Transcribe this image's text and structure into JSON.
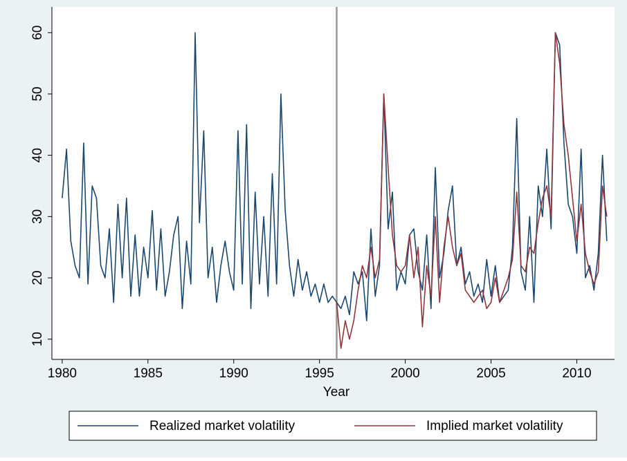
{
  "chart_data": {
    "type": "line",
    "xlabel": "Year",
    "xlim": [
      1979.4,
      2012.2
    ],
    "xticks": [
      1980,
      1985,
      1990,
      1995,
      2000,
      2005,
      2010
    ],
    "ylim": [
      6.7,
      64.2
    ],
    "yticks": [
      10,
      20,
      30,
      40,
      50,
      60
    ],
    "vline": 1996,
    "legend": "bottom",
    "x": [
      1980,
      1980.25,
      1980.5,
      1980.75,
      1981,
      1981.25,
      1981.5,
      1981.75,
      1982,
      1982.25,
      1982.5,
      1982.75,
      1983,
      1983.25,
      1983.5,
      1983.75,
      1984,
      1984.25,
      1984.5,
      1984.75,
      1985,
      1985.25,
      1985.5,
      1985.75,
      1986,
      1986.25,
      1986.5,
      1986.75,
      1987,
      1987.25,
      1987.5,
      1987.75,
      1988,
      1988.25,
      1988.5,
      1988.75,
      1989,
      1989.25,
      1989.5,
      1989.75,
      1990,
      1990.25,
      1990.5,
      1990.75,
      1991,
      1991.25,
      1991.5,
      1991.75,
      1992,
      1992.25,
      1992.5,
      1992.75,
      1993,
      1993.25,
      1993.5,
      1993.75,
      1994,
      1994.25,
      1994.5,
      1994.75,
      1995,
      1995.25,
      1995.5,
      1995.75,
      1996,
      1996.25,
      1996.5,
      1996.75,
      1997,
      1997.25,
      1997.5,
      1997.75,
      1998,
      1998.25,
      1998.5,
      1998.75,
      1999,
      1999.25,
      1999.5,
      1999.75,
      2000,
      2000.25,
      2000.5,
      2000.75,
      2001,
      2001.25,
      2001.5,
      2001.75,
      2002,
      2002.25,
      2002.5,
      2002.75,
      2003,
      2003.25,
      2003.5,
      2003.75,
      2004,
      2004.25,
      2004.5,
      2004.75,
      2005,
      2005.25,
      2005.5,
      2005.75,
      2006,
      2006.25,
      2006.5,
      2006.75,
      2007,
      2007.25,
      2007.5,
      2007.75,
      2008,
      2008.25,
      2008.5,
      2008.75,
      2009,
      2009.25,
      2009.5,
      2009.75,
      2010,
      2010.25,
      2010.5,
      2010.75,
      2011,
      2011.25,
      2011.5,
      2011.75
    ],
    "series": [
      {
        "name": "Realized market volatility",
        "color": "#1a476f",
        "values": [
          33,
          41,
          26,
          22,
          20,
          42,
          19,
          35,
          33,
          22,
          20,
          28,
          16,
          32,
          20,
          33,
          17,
          27,
          17,
          25,
          20,
          31,
          18,
          28,
          17,
          21,
          27,
          30,
          15,
          26,
          19,
          60,
          29,
          44,
          20,
          25,
          16,
          22,
          26,
          21,
          18,
          44,
          19,
          45,
          15,
          34,
          19,
          30,
          17,
          37,
          19,
          50,
          31,
          22,
          17,
          23,
          18,
          21,
          17,
          19,
          16,
          19,
          16,
          17,
          16,
          15,
          17,
          14,
          21,
          19,
          21,
          13,
          28,
          17,
          22,
          50,
          28,
          34,
          18,
          21,
          19,
          27,
          28,
          21,
          18,
          27,
          15,
          38,
          20,
          24,
          31,
          35,
          22,
          25,
          19,
          21,
          17,
          19,
          16,
          23,
          17,
          22,
          16,
          17,
          18,
          25,
          46,
          21,
          18,
          30,
          16,
          35,
          30,
          41,
          28,
          60,
          58,
          42,
          32,
          30,
          24,
          41,
          20,
          22,
          18,
          24,
          40,
          26
        ]
      },
      {
        "name": "Implied market volatility",
        "color": "#90353b",
        "values": [
          null,
          null,
          null,
          null,
          null,
          null,
          null,
          null,
          null,
          null,
          null,
          null,
          null,
          null,
          null,
          null,
          null,
          null,
          null,
          null,
          null,
          null,
          null,
          null,
          null,
          null,
          null,
          null,
          null,
          null,
          null,
          null,
          null,
          null,
          null,
          null,
          null,
          null,
          null,
          null,
          null,
          null,
          null,
          null,
          null,
          null,
          null,
          null,
          null,
          null,
          null,
          null,
          null,
          null,
          null,
          null,
          null,
          null,
          null,
          null,
          null,
          null,
          null,
          null,
          16,
          8.5,
          13,
          10,
          13,
          18,
          22,
          20,
          25,
          20,
          23,
          50,
          38,
          27,
          22,
          21,
          22,
          27,
          20,
          25,
          12,
          22,
          17,
          30,
          16,
          25,
          30,
          25,
          22,
          24,
          18,
          17,
          16,
          17,
          18,
          15,
          16,
          20,
          16,
          18,
          20,
          23,
          34,
          22,
          21,
          25,
          24,
          29,
          33,
          35,
          30,
          60,
          55,
          45,
          40,
          33,
          26,
          32,
          24,
          21,
          19,
          21,
          35,
          30
        ]
      }
    ]
  }
}
